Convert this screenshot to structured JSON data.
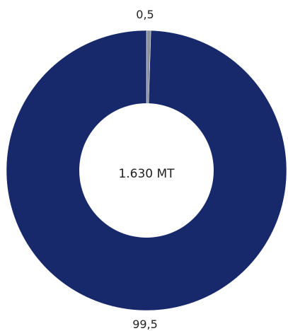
{
  "chart_data": {
    "type": "pie",
    "variant": "donut",
    "center_label": "1.630 MT",
    "slices": [
      {
        "label": "0,5",
        "value": 0.5,
        "color": "#8a8f99"
      },
      {
        "label": "99,5",
        "value": 99.5,
        "color": "#17296b"
      }
    ],
    "legend": "none"
  }
}
